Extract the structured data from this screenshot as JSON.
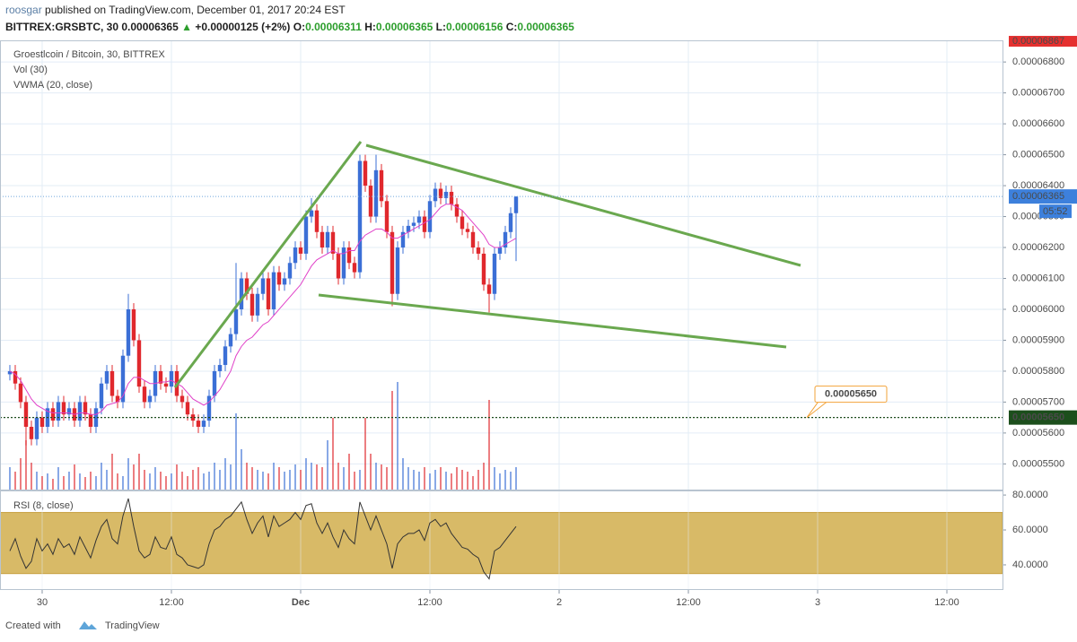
{
  "header": {
    "author": "roosgar",
    "published": "published on TradingView.com, December 01, 2017 20:24 EST",
    "symbol": "BITTREX:GRSBTC, 30",
    "price": "0.00006365",
    "arrow": "▲",
    "change": "+0.00000125 (+2%)",
    "o_label": "O:",
    "o": "0.00006311",
    "h_label": "H:",
    "h": "0.00006365",
    "l_label": "L:",
    "l": "0.00006156",
    "c_label": "C:",
    "c": "0.00006365"
  },
  "footer": {
    "created": "Created with",
    "brand": "TradingView"
  },
  "chart_data": {
    "type": "candlestick",
    "title": "Groestlcoin / Bitcoin, 30, BITTREX",
    "volume_title": "Vol (30)",
    "vwma_title": "VWMA (20, close)",
    "xlim": [
      -1.83,
      184.33
    ],
    "xticks": [
      {
        "value": 6,
        "label": "30"
      },
      {
        "value": 30,
        "label": "12:00"
      },
      {
        "value": 54,
        "label": "Dec"
      },
      {
        "value": 78,
        "label": "12:00"
      },
      {
        "value": 102,
        "label": "2"
      },
      {
        "value": 126,
        "label": "12:00"
      },
      {
        "value": 150,
        "label": "3"
      },
      {
        "value": 174,
        "label": "12:00"
      }
    ],
    "ylim": [
      5.417e-05,
      6.87e-05
    ],
    "yticks": [
      {
        "value": 6.8e-05,
        "label": "0.00006800"
      },
      {
        "value": 6.7e-05,
        "label": "0.00006700"
      },
      {
        "value": 6.6e-05,
        "label": "0.00006600"
      },
      {
        "value": 6.5e-05,
        "label": "0.00006500"
      },
      {
        "value": 6.4e-05,
        "label": "0.00006400"
      },
      {
        "value": 6.3e-05,
        "label": "0.00006300"
      },
      {
        "value": 6.2e-05,
        "label": "0.00006200"
      },
      {
        "value": 6.1e-05,
        "label": "0.00006100"
      },
      {
        "value": 6e-05,
        "label": "0.00006000"
      },
      {
        "value": 5.9e-05,
        "label": "0.00005900"
      },
      {
        "value": 5.8e-05,
        "label": "0.00005800"
      },
      {
        "value": 5.7e-05,
        "label": "0.00005700"
      },
      {
        "value": 5.6e-05,
        "label": "0.00005600"
      },
      {
        "value": 5.5e-05,
        "label": "0.00005500"
      }
    ],
    "grid": true,
    "up_color": "#3b6fd6",
    "down_color": "#e0282d",
    "vwma_color": "#e040c8",
    "open": [
      5.79e-05,
      5.8e-05,
      5.76e-05,
      5.7e-05,
      5.62e-05,
      5.58e-05,
      5.65e-05,
      5.62e-05,
      5.68e-05,
      5.64e-05,
      5.7e-05,
      5.66e-05,
      5.68e-05,
      5.64e-05,
      5.7e-05,
      5.66e-05,
      5.62e-05,
      5.68e-05,
      5.76e-05,
      5.8e-05,
      5.72e-05,
      5.7e-05,
      5.85e-05,
      6e-05,
      5.9e-05,
      5.75e-05,
      5.7e-05,
      5.72e-05,
      5.8e-05,
      5.76e-05,
      5.75e-05,
      5.8e-05,
      5.72e-05,
      5.7e-05,
      5.66e-05,
      5.64e-05,
      5.62e-05,
      5.64e-05,
      5.72e-05,
      5.8e-05,
      5.82e-05,
      5.88e-05,
      5.92e-05,
      6e-05,
      6.1e-05,
      6.05e-05,
      5.98e-05,
      6.05e-05,
      6.1e-05,
      6e-05,
      6.12e-05,
      6.08e-05,
      6.1e-05,
      6.15e-05,
      6.2e-05,
      6.18e-05,
      6.3e-05,
      6.32e-05,
      6.25e-05,
      6.2e-05,
      6.25e-05,
      6.18e-05,
      6.1e-05,
      6.2e-05,
      6.15e-05,
      6.12e-05,
      6.48e-05,
      6.4e-05,
      6.3e-05,
      6.45e-05,
      6.35e-05,
      6.25e-05,
      6.05e-05,
      6.2e-05,
      6.25e-05,
      6.27e-05,
      6.28e-05,
      6.3e-05,
      6.25e-05,
      6.35e-05,
      6.39e-05,
      6.36e-05,
      6.38e-05,
      6.34e-05,
      6.3e-05,
      6.26e-05,
      6.25e-05,
      6.2e-05,
      6.18e-05,
      6.08e-05,
      6.05e-05,
      6.18e-05,
      6.2e-05,
      6.25e-05,
      6.311e-05
    ],
    "high": [
      5.82e-05,
      5.82e-05,
      5.78e-05,
      5.72e-05,
      5.64e-05,
      5.67e-05,
      5.67e-05,
      5.7e-05,
      5.7e-05,
      5.72e-05,
      5.72e-05,
      5.7e-05,
      5.7e-05,
      5.72e-05,
      5.72e-05,
      5.68e-05,
      5.7e-05,
      5.78e-05,
      5.82e-05,
      5.82e-05,
      5.74e-05,
      5.87e-05,
      6.05e-05,
      6.02e-05,
      5.92e-05,
      5.77e-05,
      5.74e-05,
      5.82e-05,
      5.82e-05,
      5.78e-05,
      5.82e-05,
      5.82e-05,
      5.74e-05,
      5.72e-05,
      5.68e-05,
      5.66e-05,
      5.66e-05,
      5.74e-05,
      5.82e-05,
      5.84e-05,
      5.9e-05,
      5.94e-05,
      6.15e-05,
      6.12e-05,
      6.12e-05,
      6.07e-05,
      6.07e-05,
      6.12e-05,
      6.12e-05,
      6.14e-05,
      6.14e-05,
      6.12e-05,
      6.17e-05,
      6.22e-05,
      6.22e-05,
      6.32e-05,
      6.36e-05,
      6.34e-05,
      6.27e-05,
      6.27e-05,
      6.27e-05,
      6.2e-05,
      6.22e-05,
      6.22e-05,
      6.17e-05,
      6.5e-05,
      6.5e-05,
      6.42e-05,
      6.5e-05,
      6.47e-05,
      6.37e-05,
      6.27e-05,
      6.22e-05,
      6.27e-05,
      6.29e-05,
      6.3e-05,
      6.32e-05,
      6.32e-05,
      6.37e-05,
      6.41e-05,
      6.41e-05,
      6.4e-05,
      6.4e-05,
      6.36e-05,
      6.32e-05,
      6.28e-05,
      6.27e-05,
      6.22e-05,
      6.2e-05,
      6.1e-05,
      6.2e-05,
      6.22e-05,
      6.27e-05,
      6.33e-05,
      6.365e-05
    ],
    "low": [
      5.77e-05,
      5.74e-05,
      5.68e-05,
      5.56e-05,
      5.56e-05,
      5.56e-05,
      5.6e-05,
      5.6e-05,
      5.62e-05,
      5.62e-05,
      5.64e-05,
      5.64e-05,
      5.62e-05,
      5.62e-05,
      5.64e-05,
      5.6e-05,
      5.6e-05,
      5.66e-05,
      5.74e-05,
      5.7e-05,
      5.68e-05,
      5.68e-05,
      5.83e-05,
      5.88e-05,
      5.73e-05,
      5.68e-05,
      5.68e-05,
      5.7e-05,
      5.74e-05,
      5.73e-05,
      5.73e-05,
      5.7e-05,
      5.68e-05,
      5.64e-05,
      5.62e-05,
      5.6e-05,
      5.6e-05,
      5.62e-05,
      5.7e-05,
      5.78e-05,
      5.8e-05,
      5.86e-05,
      5.9e-05,
      5.98e-05,
      6.03e-05,
      5.96e-05,
      5.96e-05,
      6.03e-05,
      5.98e-05,
      5.98e-05,
      6.06e-05,
      6.06e-05,
      6.08e-05,
      6.13e-05,
      6.16e-05,
      6.16e-05,
      6.28e-05,
      6.23e-05,
      6.18e-05,
      6.18e-05,
      6.16e-05,
      6.08e-05,
      6.08e-05,
      6.13e-05,
      6.1e-05,
      6.1e-05,
      6.38e-05,
      6.28e-05,
      6.28e-05,
      6.33e-05,
      6.23e-05,
      6.01e-05,
      6.03e-05,
      6.18e-05,
      6.23e-05,
      6.25e-05,
      6.26e-05,
      6.23e-05,
      6.23e-05,
      6.33e-05,
      6.34e-05,
      6.34e-05,
      6.32e-05,
      6.28e-05,
      6.24e-05,
      6.23e-05,
      6.18e-05,
      6.16e-05,
      6.06e-05,
      5.99e-05,
      6.03e-05,
      6.16e-05,
      6.18e-05,
      6.23e-05,
      6.156e-05
    ],
    "close": [
      5.8e-05,
      5.76e-05,
      5.7e-05,
      5.62e-05,
      5.58e-05,
      5.65e-05,
      5.62e-05,
      5.68e-05,
      5.64e-05,
      5.7e-05,
      5.66e-05,
      5.68e-05,
      5.64e-05,
      5.7e-05,
      5.66e-05,
      5.62e-05,
      5.68e-05,
      5.76e-05,
      5.8e-05,
      5.72e-05,
      5.7e-05,
      5.85e-05,
      6e-05,
      5.9e-05,
      5.75e-05,
      5.7e-05,
      5.72e-05,
      5.8e-05,
      5.76e-05,
      5.75e-05,
      5.8e-05,
      5.72e-05,
      5.7e-05,
      5.66e-05,
      5.64e-05,
      5.62e-05,
      5.64e-05,
      5.72e-05,
      5.8e-05,
      5.82e-05,
      5.88e-05,
      5.92e-05,
      6e-05,
      6.1e-05,
      6.05e-05,
      5.98e-05,
      6.05e-05,
      6.1e-05,
      6e-05,
      6.12e-05,
      6.08e-05,
      6.1e-05,
      6.15e-05,
      6.2e-05,
      6.18e-05,
      6.3e-05,
      6.32e-05,
      6.25e-05,
      6.2e-05,
      6.25e-05,
      6.18e-05,
      6.1e-05,
      6.2e-05,
      6.15e-05,
      6.12e-05,
      6.48e-05,
      6.4e-05,
      6.3e-05,
      6.45e-05,
      6.35e-05,
      6.25e-05,
      6.05e-05,
      6.2e-05,
      6.25e-05,
      6.27e-05,
      6.28e-05,
      6.3e-05,
      6.25e-05,
      6.35e-05,
      6.39e-05,
      6.36e-05,
      6.38e-05,
      6.34e-05,
      6.3e-05,
      6.26e-05,
      6.25e-05,
      6.2e-05,
      6.18e-05,
      6.08e-05,
      6.05e-05,
      6.18e-05,
      6.2e-05,
      6.25e-05,
      6.311e-05,
      6.365e-05
    ],
    "volume": [
      25,
      20,
      35,
      55,
      30,
      20,
      15,
      18,
      12,
      25,
      15,
      20,
      28,
      18,
      14,
      20,
      15,
      30,
      22,
      40,
      18,
      15,
      35,
      28,
      40,
      22,
      18,
      25,
      20,
      15,
      18,
      28,
      20,
      15,
      22,
      25,
      18,
      20,
      30,
      22,
      35,
      28,
      85,
      45,
      30,
      25,
      22,
      20,
      18,
      30,
      25,
      20,
      22,
      28,
      22,
      35,
      30,
      28,
      25,
      55,
      80,
      30,
      25,
      40,
      20,
      22,
      80,
      40,
      30,
      28,
      25,
      110,
      120,
      35,
      25,
      22,
      20,
      25,
      18,
      22,
      25,
      20,
      18,
      25,
      22,
      20,
      15,
      22,
      30,
      100,
      25,
      18,
      22,
      20,
      25
    ],
    "vwma": [
      5.8e-05,
      5.79e-05,
      5.77e-05,
      5.74e-05,
      5.71e-05,
      5.69e-05,
      5.68e-05,
      5.67e-05,
      5.665e-05,
      5.665e-05,
      5.665e-05,
      5.665e-05,
      5.66e-05,
      5.665e-05,
      5.665e-05,
      5.66e-05,
      5.66e-05,
      5.67e-05,
      5.69e-05,
      5.695e-05,
      5.7e-05,
      5.72e-05,
      5.76e-05,
      5.78e-05,
      5.78e-05,
      5.77e-05,
      5.76e-05,
      5.76e-05,
      5.765e-05,
      5.765e-05,
      5.77e-05,
      5.76e-05,
      5.75e-05,
      5.73e-05,
      5.71e-05,
      5.7e-05,
      5.69e-05,
      5.7e-05,
      5.72e-05,
      5.74e-05,
      5.77e-05,
      5.8e-05,
      5.85e-05,
      5.88e-05,
      5.9e-05,
      5.91e-05,
      5.93e-05,
      5.95e-05,
      5.96e-05,
      5.98e-05,
      6e-05,
      6.02e-05,
      6.04e-05,
      6.06e-05,
      6.08e-05,
      6.11e-05,
      6.14e-05,
      6.16e-05,
      6.17e-05,
      6.18e-05,
      6.19e-05,
      6.18e-05,
      6.18e-05,
      6.19e-05,
      6.19e-05,
      6.22e-05,
      6.24e-05,
      6.25e-05,
      6.26e-05,
      6.26e-05,
      6.25e-05,
      6.23e-05,
      6.23e-05,
      6.24e-05,
      6.25e-05,
      6.26e-05,
      6.27e-05,
      6.28e-05,
      6.29e-05,
      6.31e-05,
      6.33e-05,
      6.34e-05,
      6.34e-05,
      6.33e-05,
      6.32e-05,
      6.3e-05,
      6.28e-05,
      6.26e-05,
      6.24e-05,
      6.21e-05,
      6.2e-05,
      6.2e-05,
      6.21e-05,
      6.22e-05,
      6.23e-05
    ],
    "top_price": {
      "value": 6.867e-05,
      "label": "0.00006867"
    },
    "last_price": {
      "value": 6.365e-05,
      "label": "0.00006365"
    },
    "countdown": "05:52",
    "level": {
      "value": 5.65e-05,
      "label": "0.00005650"
    },
    "callout": "0.00005650",
    "rsi": {
      "title": "RSI (8, close)",
      "ylim": [
        25.6,
        82.1
      ],
      "yticks": [
        {
          "value": 80,
          "label": "80.0000"
        },
        {
          "value": 60,
          "label": "60.0000"
        },
        {
          "value": 40,
          "label": "40.0000"
        }
      ],
      "band": [
        35,
        70
      ],
      "band_color": "#d4b257",
      "color": "#333333",
      "values": [
        48,
        55,
        45,
        38,
        42,
        55,
        48,
        52,
        46,
        55,
        50,
        52,
        46,
        56,
        50,
        44,
        54,
        62,
        66,
        55,
        52,
        68,
        78,
        62,
        48,
        44,
        46,
        56,
        50,
        49,
        56,
        46,
        44,
        40,
        39,
        38,
        40,
        52,
        60,
        62,
        66,
        68,
        72,
        76,
        66,
        58,
        64,
        68,
        56,
        68,
        62,
        64,
        66,
        70,
        66,
        74,
        75,
        64,
        58,
        64,
        56,
        50,
        60,
        55,
        52,
        76,
        68,
        60,
        68,
        60,
        52,
        38,
        52,
        56,
        58,
        58,
        60,
        54,
        64,
        66,
        62,
        64,
        58,
        54,
        50,
        49,
        46,
        44,
        36,
        32,
        48,
        50,
        54,
        58,
        62
      ]
    }
  }
}
